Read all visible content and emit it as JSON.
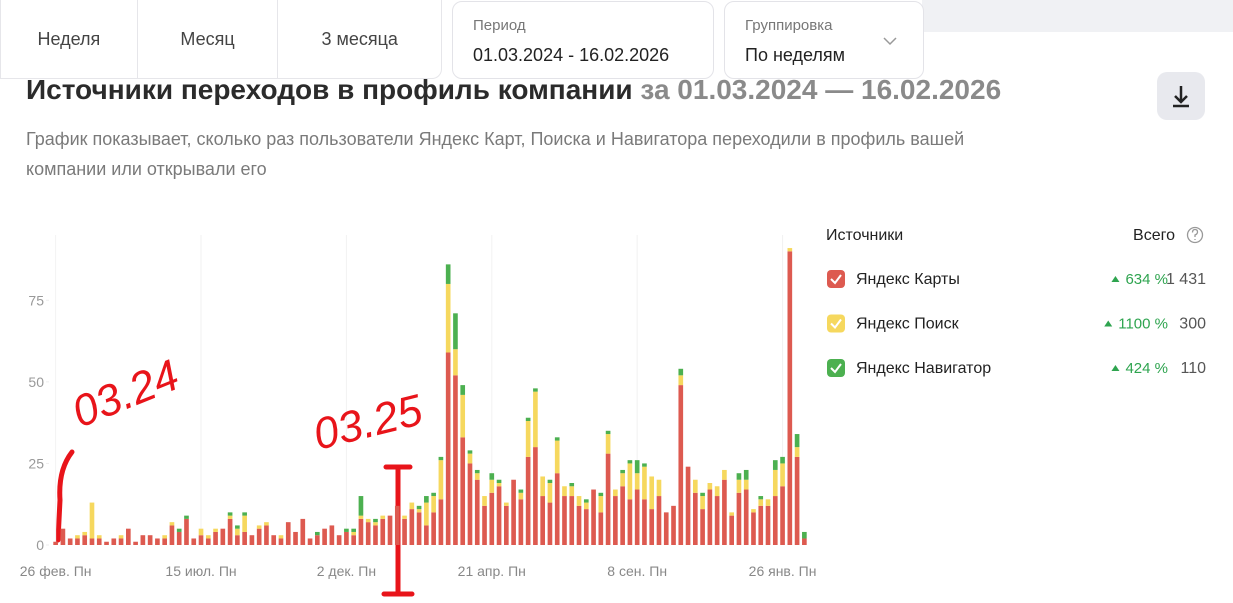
{
  "tabs": [
    "Неделя",
    "Месяц",
    "3 месяца"
  ],
  "period": {
    "label": "Период",
    "value": "01.03.2024 - 16.02.2026"
  },
  "grouping": {
    "label": "Группировка",
    "value": "По неделям"
  },
  "header": {
    "title": "Источники переходов в профиль компании",
    "title_period": "за 01.03.2024 — 16.02.2026",
    "description": "График показывает, сколько раз пользователи Яндекс Карт, Поиска и Навигатора переходили в профиль вашей компании или открывали его"
  },
  "chart_data": {
    "type": "stacked_bar",
    "legend_title": "Источники",
    "legend_total_title": "Всего",
    "categories": [
      "26 фев. Пн",
      null,
      null,
      null,
      null,
      null,
      null,
      null,
      null,
      null,
      null,
      null,
      null,
      null,
      null,
      null,
      null,
      null,
      null,
      null,
      "15 июл. Пн",
      null,
      null,
      null,
      null,
      null,
      null,
      null,
      null,
      null,
      null,
      null,
      null,
      null,
      null,
      null,
      null,
      null,
      null,
      null,
      "2 дек. Пн",
      null,
      null,
      null,
      null,
      null,
      null,
      null,
      null,
      null,
      null,
      null,
      null,
      null,
      null,
      null,
      null,
      null,
      null,
      null,
      "21 апр. Пн",
      null,
      null,
      null,
      null,
      null,
      null,
      null,
      null,
      null,
      null,
      null,
      null,
      null,
      null,
      null,
      null,
      null,
      null,
      null,
      "8 сен. Пн",
      null,
      null,
      null,
      null,
      null,
      null,
      null,
      null,
      null,
      null,
      null,
      null,
      null,
      null,
      null,
      null,
      null,
      null,
      null,
      "26 янв. Пн",
      null,
      null,
      null
    ],
    "series": [
      {
        "name": "Яндекс Карты",
        "color": "#dd5a50",
        "change": "634 %",
        "total": "1 431",
        "values": [
          1,
          5,
          2,
          2,
          3,
          2,
          2,
          1,
          2,
          2,
          5,
          1,
          3,
          3,
          2,
          2,
          6,
          4,
          8,
          2,
          3,
          2,
          4,
          5,
          8,
          3,
          4,
          3,
          5,
          6,
          3,
          2,
          7,
          4,
          8,
          2,
          3,
          5,
          6,
          3,
          4,
          3,
          8,
          7,
          6,
          8,
          9,
          12,
          8,
          11,
          10,
          6,
          10,
          14,
          59,
          52,
          33,
          25,
          20,
          12,
          16,
          18,
          12,
          20,
          14,
          27,
          30,
          15,
          13,
          22,
          15,
          15,
          12,
          11,
          17,
          10,
          28,
          15,
          18,
          14,
          17,
          14,
          11,
          15,
          10,
          12,
          49,
          24,
          16,
          11,
          17,
          15,
          20,
          9,
          16,
          17,
          10,
          12,
          12,
          15,
          18,
          90,
          27,
          2
        ]
      },
      {
        "name": "Яндекс Поиск",
        "color": "#f6d85e",
        "change": "1100 %",
        "total": "300",
        "values": [
          0,
          0,
          0,
          1,
          1,
          11,
          1,
          0,
          0,
          1,
          0,
          0,
          0,
          0,
          0,
          1,
          1,
          0,
          0,
          0,
          2,
          1,
          1,
          0,
          1,
          2,
          5,
          0,
          1,
          1,
          0,
          1,
          0,
          0,
          0,
          0,
          0,
          0,
          0,
          0,
          0,
          1,
          1,
          1,
          1,
          1,
          0,
          0,
          1,
          2,
          1,
          7,
          5,
          12,
          21,
          8,
          13,
          3,
          2,
          3,
          4,
          1,
          1,
          0,
          2,
          11,
          17,
          6,
          6,
          10,
          3,
          3,
          3,
          2,
          0,
          5,
          6,
          2,
          4,
          11,
          5,
          10,
          10,
          5,
          0,
          0,
          3,
          0,
          4,
          4,
          2,
          3,
          3,
          1,
          4,
          3,
          1,
          2,
          2,
          8,
          7,
          1,
          3,
          0
        ]
      },
      {
        "name": "Яндекс Навигатор",
        "color": "#4cb050",
        "change": "424 %",
        "total": "110",
        "values": [
          0,
          0,
          0,
          0,
          0,
          0,
          0,
          0,
          0,
          0,
          0,
          0,
          0,
          0,
          0,
          0,
          0,
          1,
          1,
          0,
          0,
          0,
          0,
          0,
          1,
          1,
          1,
          0,
          0,
          0,
          0,
          0,
          0,
          0,
          0,
          0,
          1,
          0,
          0,
          0,
          1,
          1,
          6,
          0,
          1,
          0,
          0,
          0,
          0,
          0,
          1,
          2,
          1,
          1,
          6,
          11,
          3,
          1,
          1,
          0,
          2,
          1,
          0,
          0,
          1,
          1,
          1,
          0,
          1,
          1,
          0,
          1,
          0,
          1,
          0,
          1,
          1,
          0,
          1,
          1,
          4,
          1,
          0,
          0,
          0,
          0,
          2,
          0,
          0,
          1,
          0,
          0,
          0,
          0,
          2,
          3,
          0,
          1,
          0,
          3,
          2,
          0,
          4,
          2
        ]
      }
    ],
    "ylim": [
      0,
      95
    ],
    "yticks": [
      0,
      25,
      50,
      75
    ],
    "annotations": [
      {
        "text": "03.24"
      },
      {
        "text": "03.25"
      }
    ]
  }
}
